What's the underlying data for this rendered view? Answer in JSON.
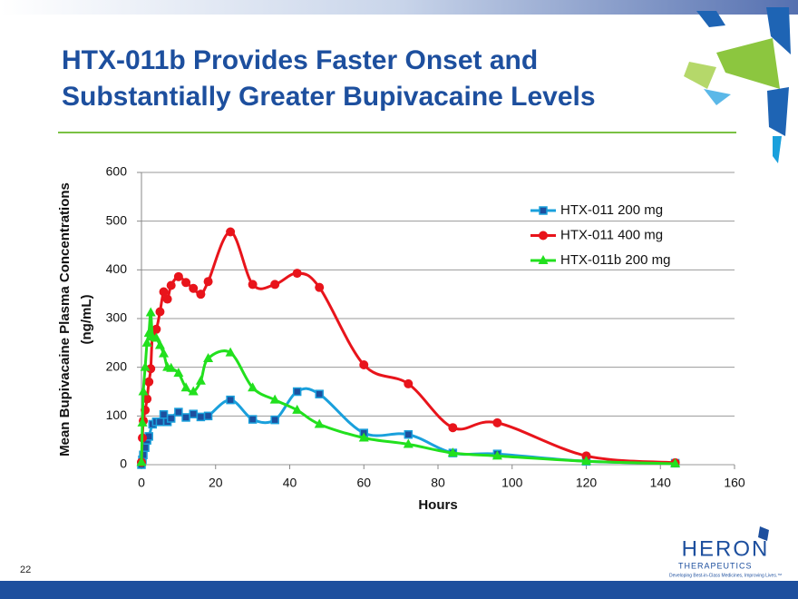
{
  "slide": {
    "title": [
      "HTX-011b Provides Faster Onset and",
      "Substantially Greater Bupivacaine Levels"
    ],
    "page_number": "22",
    "logo": {
      "name": "HERON",
      "sub": "THERAPEUTICS",
      "tagline": "Developing Best-in-Class Medicines, Improving Lives.™"
    }
  },
  "chart_data": {
    "type": "line",
    "xlabel": "Hours",
    "ylabel": [
      "Mean Bupivacaine Plasma Concentrations",
      "(ng/mL)"
    ],
    "xlim": [
      0,
      160
    ],
    "xticks": [
      0,
      20,
      40,
      60,
      80,
      100,
      120,
      140,
      160
    ],
    "ylim": [
      0,
      600
    ],
    "yticks": [
      0,
      100,
      200,
      300,
      400,
      500,
      600
    ],
    "grid": true,
    "legend": "upper right",
    "series": [
      {
        "name": "HTX-011 200 mg",
        "color": "#1aa0dc",
        "marker": "square",
        "x": [
          0,
          0.25,
          0.5,
          1,
          1.5,
          2,
          3,
          4,
          5,
          6,
          7,
          8,
          10,
          12,
          14,
          16,
          18,
          24,
          30,
          36,
          42,
          48,
          60,
          72,
          84,
          96,
          120,
          144
        ],
        "values": [
          0,
          10,
          20,
          35,
          50,
          58,
          83,
          88,
          88,
          103,
          88,
          95,
          108,
          97,
          104,
          98,
          100,
          133,
          93,
          92,
          150,
          145,
          65,
          62,
          24,
          22,
          7,
          3
        ]
      },
      {
        "name": "HTX-011 400 mg",
        "color": "#e8141b",
        "marker": "circle",
        "x": [
          0,
          0.25,
          0.5,
          1,
          1.5,
          2,
          2.5,
          3,
          4,
          5,
          6,
          7,
          8,
          10,
          12,
          14,
          16,
          18,
          24,
          30,
          36,
          42,
          48,
          60,
          72,
          84,
          96,
          120,
          144
        ],
        "values": [
          5,
          55,
          90,
          112,
          135,
          170,
          197,
          270,
          278,
          314,
          355,
          340,
          368,
          386,
          374,
          362,
          350,
          376,
          478,
          370,
          370,
          393,
          364,
          205,
          166,
          76,
          86,
          18,
          4
        ]
      },
      {
        "name": "HTX-011b 200 mg",
        "color": "#22e01e",
        "marker": "triangle",
        "x": [
          0,
          0.25,
          0.5,
          1,
          1.5,
          2,
          2.5,
          3,
          4,
          5,
          6,
          7,
          8,
          10,
          12,
          14,
          16,
          18,
          24,
          30,
          36,
          42,
          48,
          60,
          72,
          84,
          96,
          120,
          144
        ],
        "values": [
          5,
          86,
          150,
          200,
          250,
          270,
          312,
          262,
          260,
          245,
          228,
          200,
          198,
          188,
          158,
          150,
          172,
          218,
          230,
          158,
          133,
          112,
          83,
          55,
          42,
          24,
          18,
          7,
          2
        ]
      }
    ]
  }
}
